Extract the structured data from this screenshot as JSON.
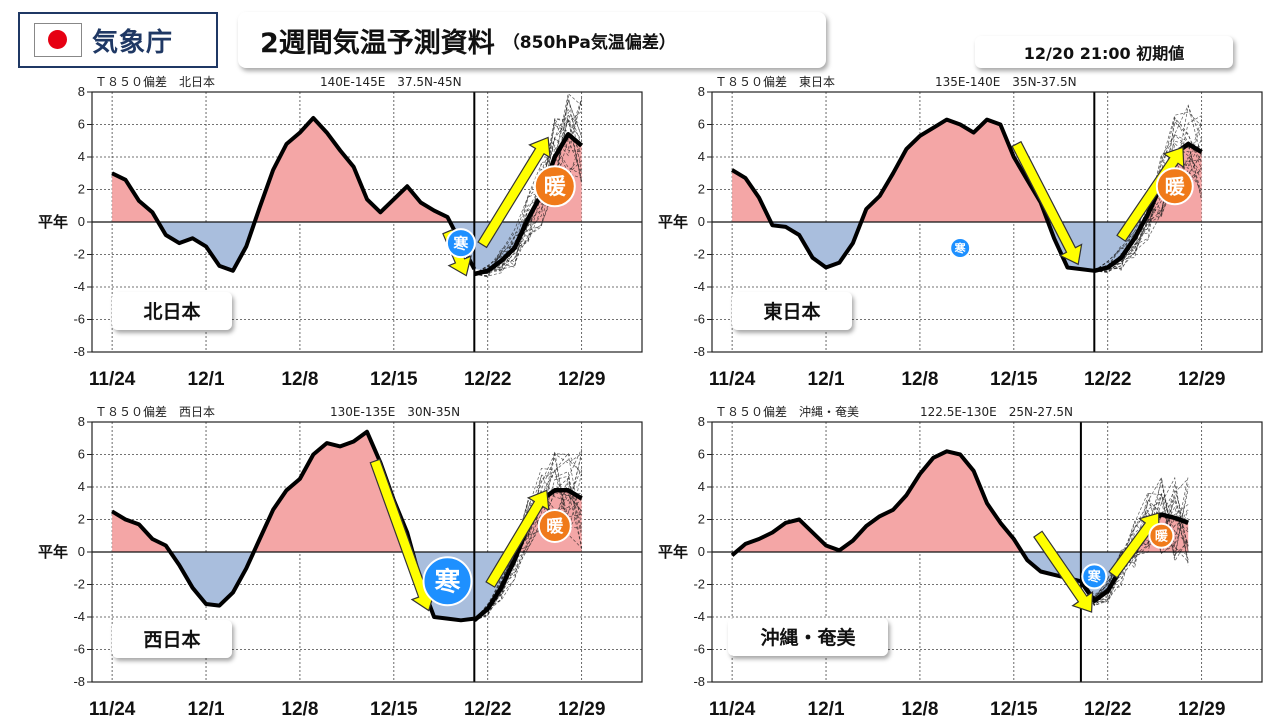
{
  "header": {
    "agency": "気象庁",
    "title": "2週間気温予測資料",
    "subtitle": "（850hPa気温偏差）",
    "init_time": "12/20 21:00 初期値"
  },
  "labels": {
    "normal": "平年",
    "warm": "暖",
    "cold": "寒"
  },
  "colors": {
    "warm_fill": "#f4a6a6",
    "cold_fill": "#a9bedd",
    "arrow": "#ffff00",
    "warm_badge": "#f07a1a",
    "cold_badge": "#1e90ff"
  },
  "chart_data": [
    {
      "type": "area",
      "region": "北日本",
      "header_left": "Ｔ８５０偏差　北日本",
      "header_right": "140E-145E　37.5N-45N",
      "xlabels": [
        "11/24",
        "12/1",
        "12/8",
        "12/15",
        "12/22",
        "12/29"
      ],
      "ylim": [
        -8,
        8
      ],
      "yticks": [
        8,
        6,
        4,
        2,
        0,
        -2,
        -4,
        -6,
        -8
      ],
      "x_day_range": [
        0,
        35
      ],
      "init_day": 27,
      "observed": {
        "x": [
          0,
          1,
          2,
          3,
          4,
          5,
          6,
          7,
          8,
          9,
          10,
          11,
          12,
          13,
          14,
          15,
          16,
          17,
          18,
          19,
          20,
          21,
          22,
          23,
          24,
          25,
          26,
          27
        ],
        "y": [
          3.0,
          2.6,
          1.3,
          0.6,
          -0.8,
          -1.3,
          -1.0,
          -1.5,
          -2.7,
          -3.0,
          -1.5,
          0.9,
          3.2,
          4.8,
          5.5,
          6.4,
          5.5,
          4.4,
          3.4,
          1.4,
          0.6,
          1.4,
          2.2,
          1.2,
          0.7,
          0.3,
          -1.3,
          -2.9
        ]
      },
      "forecast": {
        "x": [
          27,
          28,
          29,
          30,
          31,
          32,
          33,
          34,
          35
        ],
        "y": [
          -3.2,
          -3.0,
          -2.4,
          -1.6,
          0.2,
          1.7,
          4.0,
          5.4,
          4.7
        ]
      },
      "cold_badge": {
        "day": 26,
        "value": -1.3
      },
      "warm_badge": {
        "day": 33,
        "value": 2.2
      }
    },
    {
      "type": "area",
      "region": "東日本",
      "header_left": "Ｔ８５０偏差　東日本",
      "header_right": "135E-140E　35N-37.5N",
      "xlabels": [
        "11/24",
        "12/1",
        "12/8",
        "12/15",
        "12/22",
        "12/29"
      ],
      "ylim": [
        -8,
        8
      ],
      "yticks": [
        8,
        6,
        4,
        2,
        0,
        -2,
        -4,
        -6,
        -8
      ],
      "x_day_range": [
        0,
        35
      ],
      "init_day": 27,
      "observed": {
        "x": [
          0,
          1,
          2,
          3,
          4,
          5,
          6,
          7,
          8,
          9,
          10,
          11,
          12,
          13,
          14,
          15,
          16,
          17,
          18,
          19,
          20,
          21,
          22,
          23,
          24,
          25,
          26,
          27
        ],
        "y": [
          3.2,
          2.7,
          1.5,
          -0.2,
          -0.3,
          -0.8,
          -2.2,
          -2.8,
          -2.5,
          -1.3,
          0.8,
          1.6,
          3.0,
          4.5,
          5.3,
          5.8,
          6.3,
          6.0,
          5.5,
          6.3,
          6.0,
          4.0,
          2.6,
          1.2,
          -1.0,
          -2.8,
          -2.9,
          -3.0
        ]
      },
      "forecast": {
        "x": [
          27,
          28,
          29,
          30,
          31,
          32,
          33,
          34,
          35
        ],
        "y": [
          -3.0,
          -2.8,
          -2.2,
          -1.0,
          0.5,
          2.3,
          4.2,
          4.8,
          4.3
        ]
      },
      "cold_badge": {
        "day": 17,
        "value": -1.6
      },
      "warm_badge": {
        "day": 33,
        "value": 2.2
      }
    },
    {
      "type": "area",
      "region": "西日本",
      "header_left": "Ｔ８５０偏差　西日本",
      "header_right": "130E-135E　30N-35N",
      "xlabels": [
        "11/24",
        "12/1",
        "12/8",
        "12/15",
        "12/22",
        "12/29"
      ],
      "ylim": [
        -8,
        8
      ],
      "yticks": [
        8,
        6,
        4,
        2,
        0,
        -2,
        -4,
        -6,
        -8
      ],
      "x_day_range": [
        0,
        35
      ],
      "init_day": 27,
      "observed": {
        "x": [
          0,
          1,
          2,
          3,
          4,
          5,
          6,
          7,
          8,
          9,
          10,
          11,
          12,
          13,
          14,
          15,
          16,
          17,
          18,
          19,
          20,
          21,
          22,
          23,
          24,
          25,
          26,
          27
        ],
        "y": [
          2.5,
          2.0,
          1.7,
          0.8,
          0.4,
          -0.8,
          -2.2,
          -3.2,
          -3.3,
          -2.5,
          -1.0,
          0.8,
          2.6,
          3.8,
          4.5,
          6.0,
          6.7,
          6.5,
          6.8,
          7.4,
          5.5,
          3.2,
          1.2,
          -1.8,
          -4.0,
          -4.1,
          -4.2,
          -4.1
        ]
      },
      "forecast": {
        "x": [
          27,
          28,
          29,
          30,
          31,
          32,
          33,
          34,
          35
        ],
        "y": [
          -4.2,
          -3.5,
          -2.2,
          -0.5,
          1.6,
          3.2,
          3.8,
          3.8,
          3.3
        ]
      },
      "cold_badge": {
        "day": 25,
        "value": -1.8
      },
      "warm_badge": {
        "day": 33,
        "value": 1.6
      }
    },
    {
      "type": "area",
      "region": "沖縄・奄美",
      "header_left": "Ｔ８５０偏差　沖縄・奄美",
      "header_right": "122.5E-130E　25N-27.5N",
      "xlabels": [
        "11/24",
        "12/1",
        "12/8",
        "12/15",
        "12/22",
        "12/29"
      ],
      "ylim": [
        -8,
        8
      ],
      "yticks": [
        8,
        6,
        4,
        2,
        0,
        -2,
        -4,
        -6,
        -8
      ],
      "x_day_range": [
        0,
        35
      ],
      "init_day": 26,
      "observed": {
        "x": [
          0,
          1,
          2,
          3,
          4,
          5,
          6,
          7,
          8,
          9,
          10,
          11,
          12,
          13,
          14,
          15,
          16,
          17,
          18,
          19,
          20,
          21,
          22,
          23,
          24,
          25,
          26
        ],
        "y": [
          -0.2,
          0.5,
          0.8,
          1.2,
          1.8,
          2.0,
          1.2,
          0.4,
          0.1,
          0.7,
          1.6,
          2.2,
          2.6,
          3.5,
          4.8,
          5.8,
          6.2,
          6.0,
          5.0,
          3.0,
          1.8,
          0.8,
          -0.5,
          -1.2,
          -1.4,
          -1.6,
          -1.8
        ]
      },
      "forecast": {
        "x": [
          26,
          27,
          28,
          29,
          30,
          31,
          32,
          33,
          34
        ],
        "y": [
          -1.8,
          -3.0,
          -2.4,
          -1.0,
          0.5,
          1.8,
          2.3,
          2.1,
          1.8
        ]
      },
      "cold_badge": {
        "day": 27,
        "value": -1.5
      },
      "warm_badge": {
        "day": 32,
        "value": 1.0
      }
    }
  ]
}
